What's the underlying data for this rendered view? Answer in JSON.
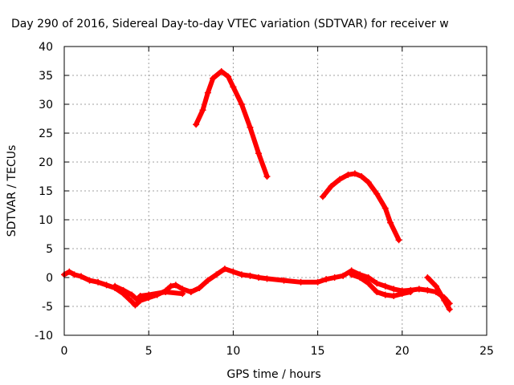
{
  "chart_data": {
    "type": "line",
    "title": "Day 290 of 2016, Sidereal Day-to-day VTEC variation (SDTVAR) for receiver w",
    "xlabel": "GPS time / hours",
    "ylabel": "SDTVAR / TECUs",
    "xlim": [
      0,
      25
    ],
    "ylim": [
      -10,
      40
    ],
    "xticks": [
      0,
      5,
      10,
      15,
      20,
      25
    ],
    "yticks": [
      -10,
      -5,
      0,
      5,
      10,
      15,
      20,
      25,
      30,
      35,
      40
    ],
    "grid": true,
    "legend": "none",
    "series_color": "#ff0000",
    "series": [
      {
        "values": [
          [
            0,
            0.5
          ],
          [
            0.3,
            1
          ],
          [
            0.6,
            0.5
          ],
          [
            1,
            0.2
          ],
          [
            1.5,
            -0.5
          ],
          [
            2,
            -0.8
          ],
          [
            2.5,
            -1.3
          ],
          [
            3,
            -1.8
          ],
          [
            3.5,
            -2.8
          ],
          [
            4,
            -4.2
          ],
          [
            4.2,
            -4.8
          ],
          [
            4.5,
            -4
          ],
          [
            5,
            -3.5
          ],
          [
            5.5,
            -3
          ],
          [
            6,
            -2.3
          ],
          [
            6.3,
            -1.5
          ],
          [
            6.6,
            -1.3
          ],
          [
            7,
            -2
          ],
          [
            7.5,
            -2.5
          ],
          [
            8,
            -1.8
          ],
          [
            8.5,
            -0.5
          ],
          [
            9,
            0.5
          ],
          [
            9.5,
            1.5
          ],
          [
            10,
            1
          ],
          [
            10.5,
            0.5
          ],
          [
            11,
            0.3
          ],
          [
            11.5,
            0
          ],
          [
            12,
            -0.2
          ],
          [
            13,
            -0.5
          ],
          [
            14,
            -0.8
          ],
          [
            15,
            -0.8
          ],
          [
            15.5,
            -0.3
          ],
          [
            16,
            0
          ],
          [
            16.5,
            0.3
          ],
          [
            17,
            1.2
          ],
          [
            17.5,
            0.5
          ],
          [
            18,
            0
          ],
          [
            18.5,
            -1
          ],
          [
            19,
            -1.5
          ],
          [
            19.5,
            -2
          ],
          [
            20,
            -2.3
          ],
          [
            20.5,
            -2.2
          ],
          [
            21,
            -2
          ],
          [
            21.5,
            -2.2
          ],
          [
            22,
            -2.5
          ],
          [
            22.5,
            -3.5
          ],
          [
            22.8,
            -4.5
          ]
        ]
      },
      {
        "values": [
          [
            3,
            -1.5
          ],
          [
            3.5,
            -2.2
          ],
          [
            4,
            -3
          ],
          [
            4.3,
            -3.8
          ],
          [
            4.5,
            -3.2
          ],
          [
            5,
            -3
          ],
          [
            6,
            -2.5
          ],
          [
            7,
            -2.8
          ]
        ]
      },
      {
        "values": [
          [
            17,
            0.5
          ],
          [
            17.5,
            0
          ],
          [
            18,
            -1
          ],
          [
            18.5,
            -2.5
          ],
          [
            19,
            -3
          ],
          [
            19.5,
            -3.2
          ],
          [
            20,
            -2.8
          ],
          [
            20.5,
            -2.5
          ]
        ]
      },
      {
        "values": [
          [
            21.5,
            0
          ],
          [
            22,
            -1.5
          ],
          [
            22.3,
            -3
          ],
          [
            22.5,
            -4
          ],
          [
            22.8,
            -5.5
          ]
        ]
      },
      {
        "values": [
          [
            7.8,
            26.5
          ],
          [
            8.2,
            29
          ],
          [
            8.5,
            32
          ],
          [
            8.8,
            34.5
          ],
          [
            9.3,
            35.7
          ],
          [
            9.7,
            34.8
          ],
          [
            10,
            33
          ],
          [
            10.5,
            30
          ],
          [
            11,
            26
          ],
          [
            11.5,
            21.5
          ],
          [
            12,
            17.5
          ]
        ]
      },
      {
        "values": [
          [
            15.3,
            14
          ],
          [
            15.8,
            15.8
          ],
          [
            16.3,
            17
          ],
          [
            16.8,
            17.8
          ],
          [
            17.2,
            18
          ],
          [
            17.6,
            17.5
          ],
          [
            18,
            16.5
          ],
          [
            18.5,
            14.5
          ],
          [
            19,
            12
          ],
          [
            19.3,
            9.5
          ],
          [
            19.8,
            6.5
          ]
        ]
      }
    ]
  }
}
